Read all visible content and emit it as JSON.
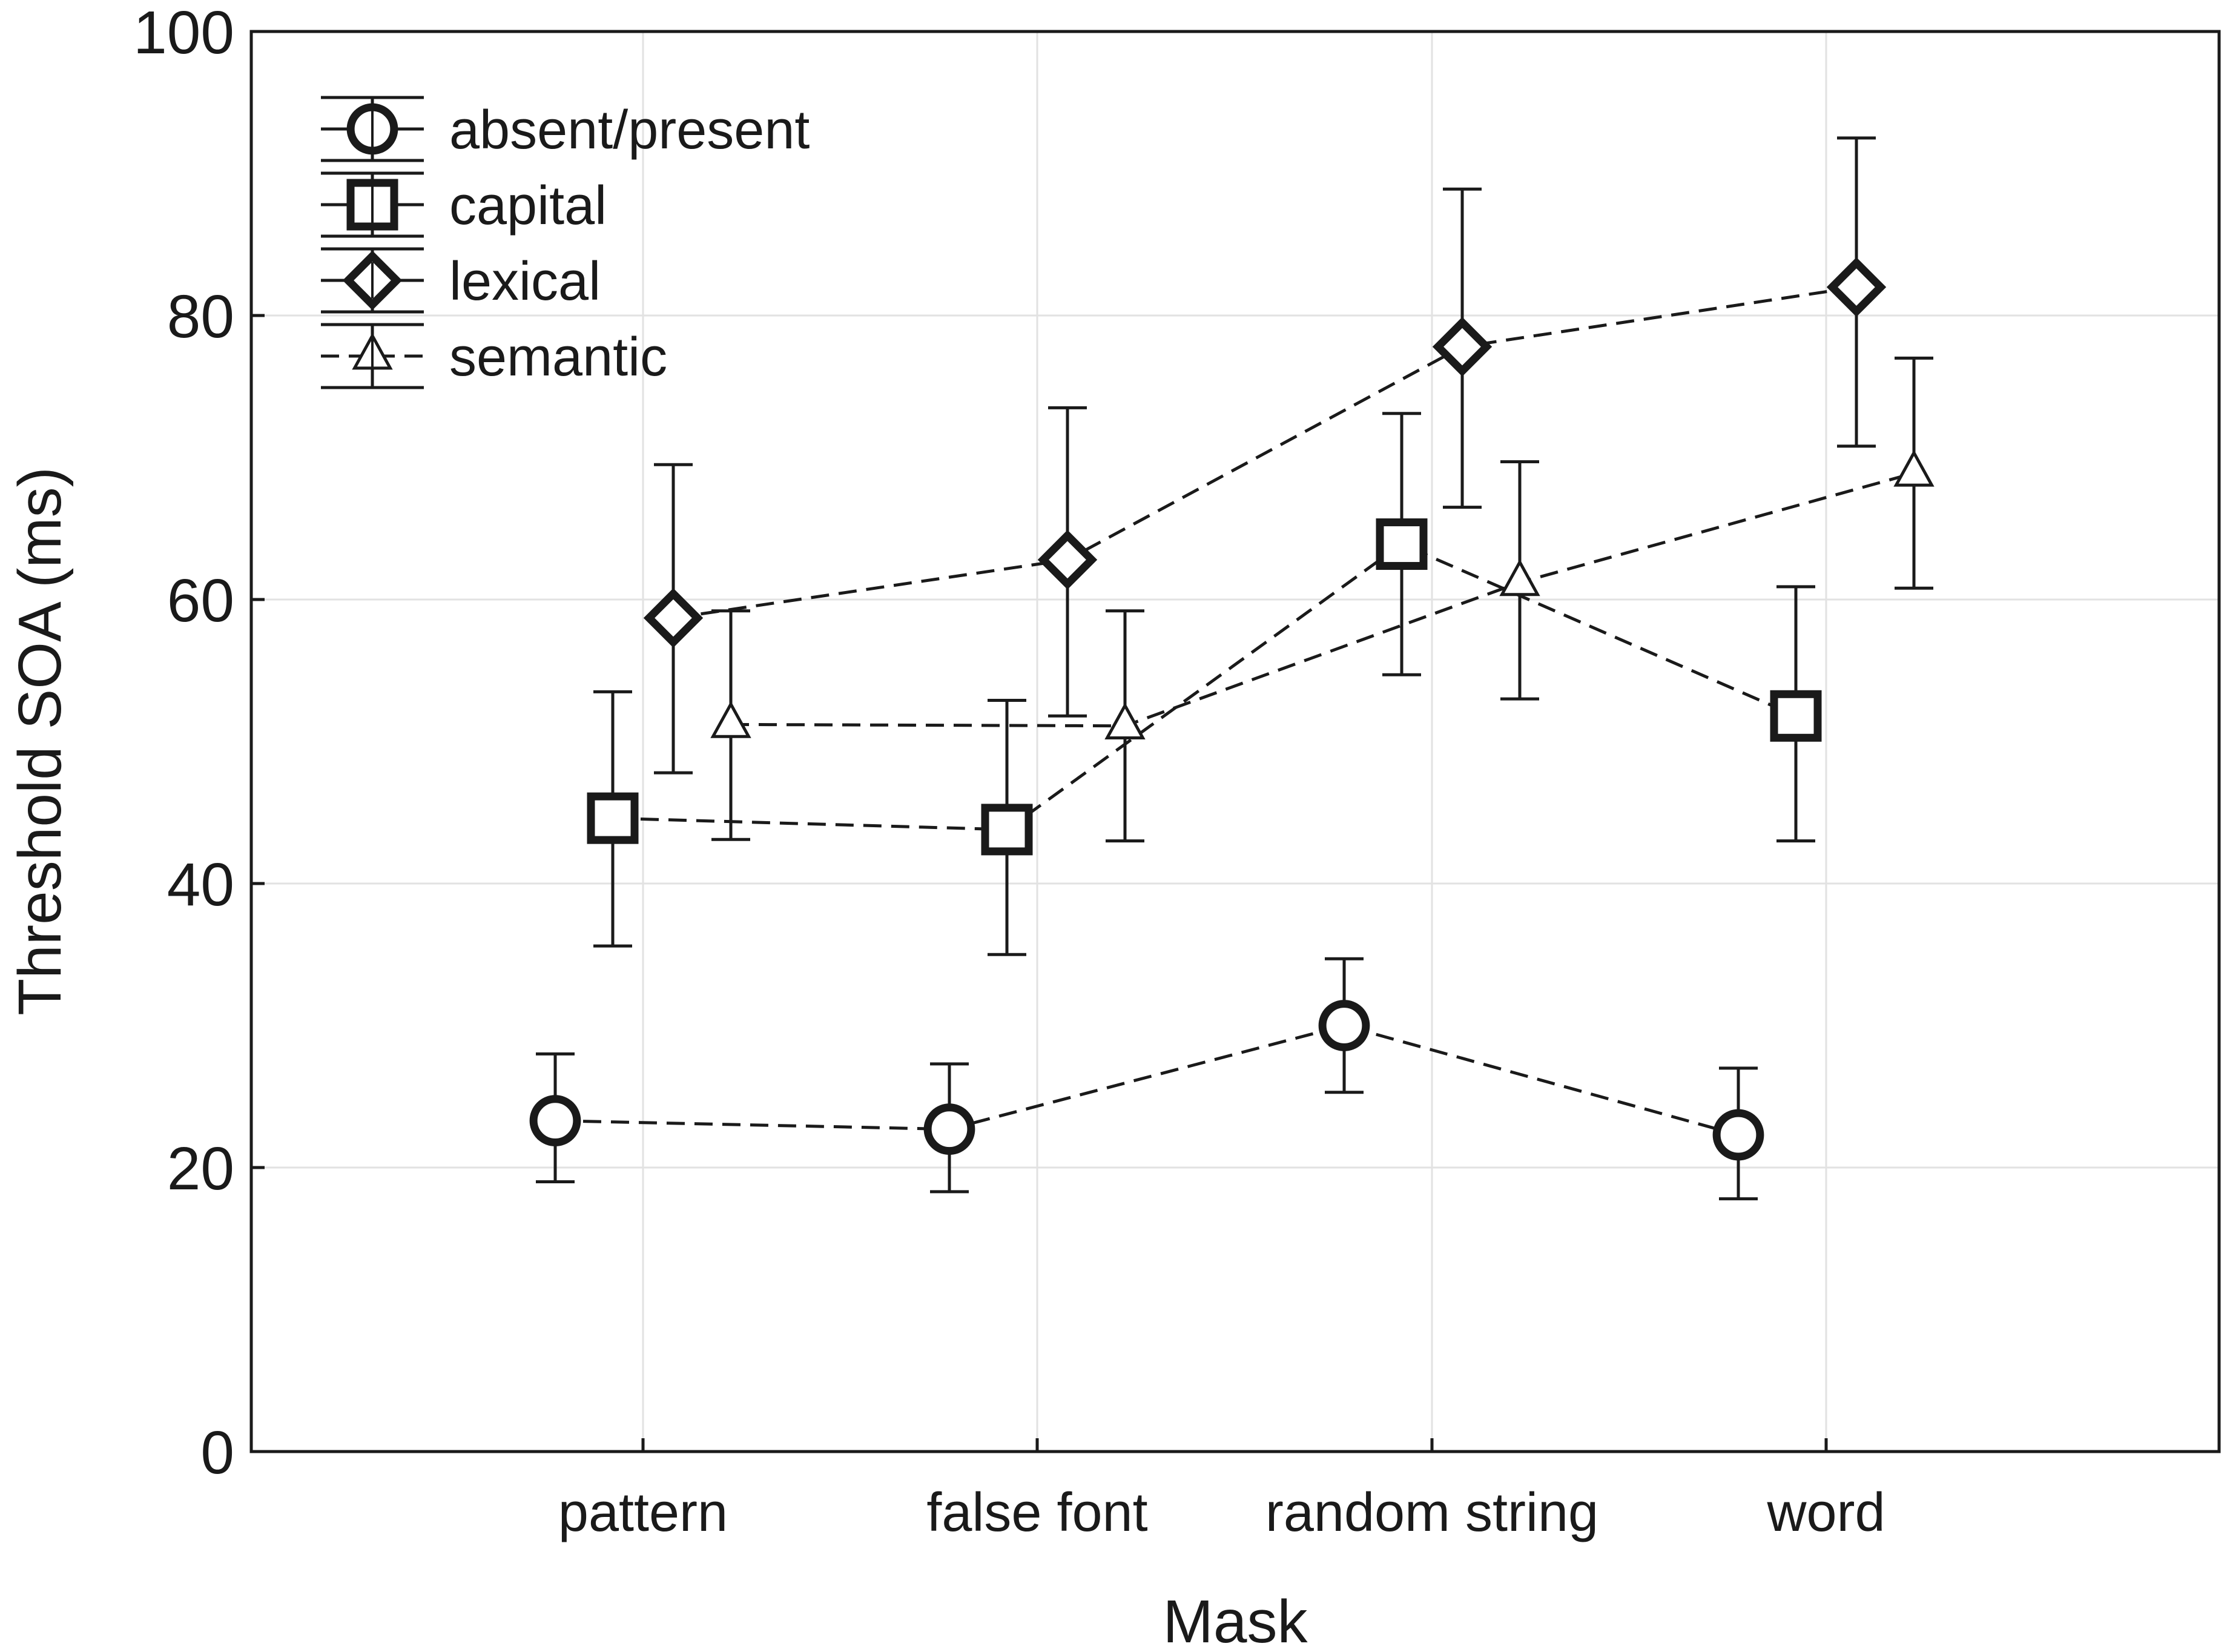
{
  "chart_data": {
    "type": "line",
    "xlabel": "Mask",
    "ylabel": "Threshold SOA (ms)",
    "categories": [
      "pattern",
      "false font",
      "random string",
      "word"
    ],
    "ylim": [
      0,
      100
    ],
    "yticks": [
      0,
      20,
      40,
      60,
      80,
      100
    ],
    "grid": true,
    "legend_position": "top-left",
    "error_bars": true,
    "series": [
      {
        "name": "absent/present",
        "marker": "circle",
        "values": [
          23.3,
          22.7,
          30.0,
          22.3
        ],
        "err_low": [
          19.0,
          18.3,
          25.3,
          17.8
        ],
        "err_high": [
          28.0,
          27.3,
          34.7,
          27.0
        ]
      },
      {
        "name": "capital",
        "marker": "square",
        "values": [
          44.6,
          43.8,
          63.9,
          51.8
        ],
        "err_low": [
          35.6,
          35.0,
          54.7,
          43.0
        ],
        "err_high": [
          53.5,
          52.9,
          73.1,
          60.9
        ]
      },
      {
        "name": "lexical",
        "marker": "diamond",
        "values": [
          58.7,
          62.8,
          77.8,
          82.0
        ],
        "err_low": [
          47.8,
          51.8,
          66.5,
          70.8
        ],
        "err_high": [
          69.5,
          73.5,
          88.9,
          92.5
        ]
      },
      {
        "name": "semantic",
        "marker": "triangle",
        "values": [
          51.2,
          51.1,
          61.2,
          68.9
        ],
        "err_low": [
          43.1,
          43.0,
          53.0,
          60.8
        ],
        "err_high": [
          59.2,
          59.2,
          69.7,
          77.0
        ]
      }
    ]
  }
}
